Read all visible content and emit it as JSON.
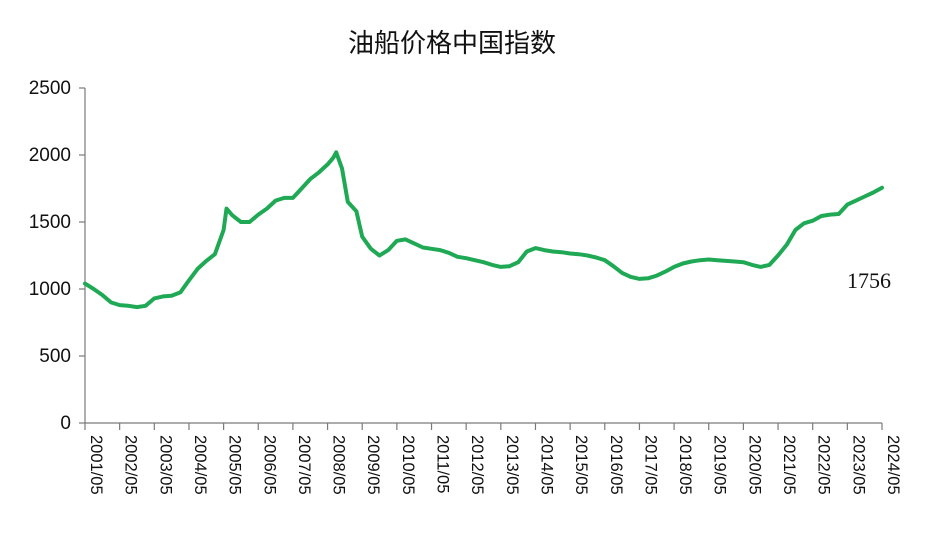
{
  "chart_data": {
    "type": "line",
    "title": "油船价格中国指数",
    "xlabel": "",
    "ylabel": "",
    "ylim": [
      0,
      2500
    ],
    "y_ticks": [
      "0",
      "500",
      "1000",
      "1500",
      "2000",
      "2500"
    ],
    "x_ticks": [
      "2001/05",
      "2002/05",
      "2003/05",
      "2004/05",
      "2005/05",
      "2006/05",
      "2007/05",
      "2008/05",
      "2009/05",
      "2010/05",
      "2011/05",
      "2012/05",
      "2013/05",
      "2014/05",
      "2015/05",
      "2016/05",
      "2017/05",
      "2018/05",
      "2019/05",
      "2020/05",
      "2021/05",
      "2022/05",
      "2023/05",
      "2024/05"
    ],
    "grid": false,
    "legend": "none",
    "line_color": "#1fa954",
    "end_label": "1756",
    "series": [
      {
        "x": [
          "2001/05",
          "2001/08",
          "2001/11",
          "2002/02",
          "2002/05",
          "2002/08",
          "2002/11",
          "2003/02",
          "2003/05",
          "2003/08",
          "2003/11",
          "2004/02",
          "2004/05",
          "2004/08",
          "2004/11",
          "2005/02",
          "2005/05",
          "2005/06",
          "2005/08",
          "2005/11",
          "2006/02",
          "2006/05",
          "2006/08",
          "2006/11",
          "2007/02",
          "2007/05",
          "2007/08",
          "2007/11",
          "2008/02",
          "2008/05",
          "2008/07",
          "2008/08",
          "2008/10",
          "2008/12",
          "2009/03",
          "2009/05",
          "2009/08",
          "2009/11",
          "2010/02",
          "2010/05",
          "2010/08",
          "2010/11",
          "2011/02",
          "2011/05",
          "2011/08",
          "2011/11",
          "2012/02",
          "2012/05",
          "2012/08",
          "2012/11",
          "2013/02",
          "2013/05",
          "2013/08",
          "2013/11",
          "2014/02",
          "2014/05",
          "2014/08",
          "2014/11",
          "2015/02",
          "2015/05",
          "2015/08",
          "2015/11",
          "2016/02",
          "2016/05",
          "2016/08",
          "2016/11",
          "2017/02",
          "2017/05",
          "2017/08",
          "2017/11",
          "2018/02",
          "2018/05",
          "2018/08",
          "2018/11",
          "2019/02",
          "2019/05",
          "2019/08",
          "2019/11",
          "2020/02",
          "2020/05",
          "2020/08",
          "2020/11",
          "2021/02",
          "2021/05",
          "2021/08",
          "2021/11",
          "2022/02",
          "2022/05",
          "2022/08",
          "2022/11",
          "2023/02",
          "2023/05",
          "2023/08",
          "2023/11",
          "2024/02",
          "2024/05"
        ],
        "values": [
          1040,
          1000,
          955,
          900,
          880,
          875,
          865,
          875,
          930,
          945,
          950,
          975,
          1065,
          1150,
          1210,
          1260,
          1440,
          1600,
          1550,
          1500,
          1500,
          1555,
          1600,
          1660,
          1680,
          1680,
          1750,
          1820,
          1870,
          1930,
          1980,
          2020,
          1900,
          1650,
          1580,
          1390,
          1300,
          1250,
          1290,
          1360,
          1370,
          1340,
          1310,
          1300,
          1290,
          1270,
          1240,
          1230,
          1215,
          1200,
          1180,
          1165,
          1170,
          1200,
          1280,
          1305,
          1290,
          1280,
          1275,
          1265,
          1260,
          1250,
          1235,
          1215,
          1170,
          1120,
          1090,
          1075,
          1080,
          1100,
          1130,
          1165,
          1190,
          1205,
          1215,
          1220,
          1215,
          1210,
          1205,
          1200,
          1180,
          1165,
          1180,
          1250,
          1330,
          1440,
          1490,
          1510,
          1545,
          1555,
          1560,
          1630,
          1660,
          1690,
          1720,
          1756
        ]
      }
    ]
  }
}
